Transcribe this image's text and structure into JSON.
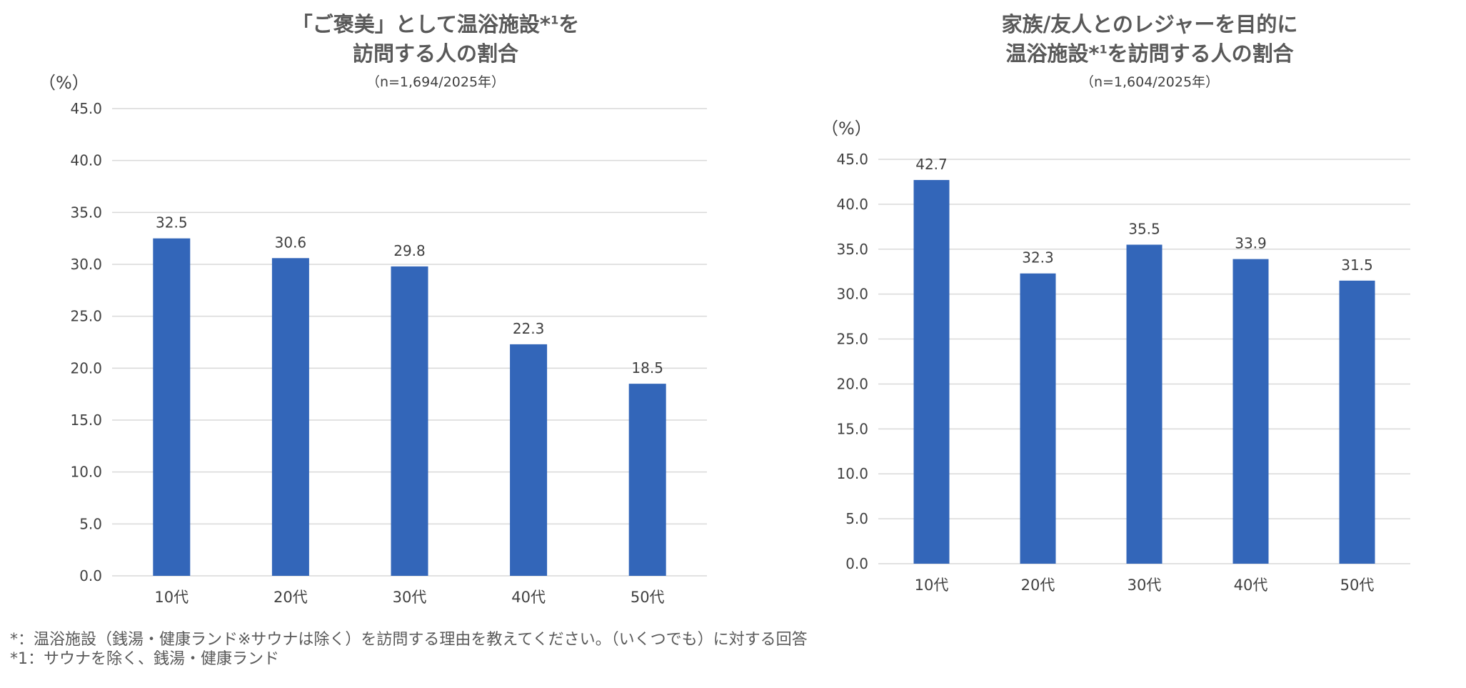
{
  "chart_data": [
    {
      "type": "bar",
      "title_line1_pre": "「ご褒美」として温浴施設*",
      "title_sup": "1",
      "title_line1_post": "を",
      "title_line2": "訪問する人の割合",
      "subtitle": "（n=1,694/2025年）",
      "ylabel": "（%）",
      "categories": [
        "10代",
        "20代",
        "30代",
        "40代",
        "50代"
      ],
      "values": [
        32.5,
        30.6,
        29.8,
        22.3,
        18.5
      ],
      "ylim": [
        0,
        45
      ],
      "ytick_step": 5,
      "grid": true,
      "bar_color": "#3366b9"
    },
    {
      "type": "bar",
      "title_line1": "家族/友人とのレジャーを目的に",
      "title_line2_pre": "温浴施設*",
      "title_sup": "1",
      "title_line2_post": "を訪問する人の割合",
      "subtitle": "（n=1,604/2025年）",
      "ylabel": "（%）",
      "categories": [
        "10代",
        "20代",
        "30代",
        "40代",
        "50代"
      ],
      "values": [
        42.7,
        32.3,
        35.5,
        33.9,
        31.5
      ],
      "ylim": [
        0,
        45
      ],
      "ytick_step": 5,
      "grid": true,
      "bar_color": "#3366b9"
    }
  ],
  "footnotes": [
    "*：温浴施設（銭湯・健康ランド※サウナは除く）を訪問する理由を教えてください。（いくつでも）に対する回答",
    "*1：サウナを除く、銭湯・健康ランド"
  ],
  "colors": {
    "bar": "#3366b9",
    "grid": "#d9d9d9",
    "title": "#595959",
    "text": "#404040"
  }
}
